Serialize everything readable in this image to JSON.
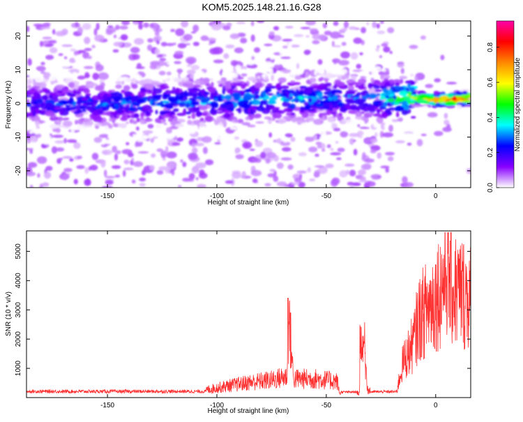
{
  "title": "KOM5.2025.148.21.16.G28",
  "chart_data": [
    {
      "type": "heatmap",
      "xlabel": "Height of straight line (km)",
      "ylabel": "Frequency (Hz)",
      "xlim": [
        -187,
        16
      ],
      "ylim": [
        -25,
        24.5
      ],
      "xticks": [
        -150,
        -100,
        -50,
        0
      ],
      "yticks": [
        -20,
        -10,
        0,
        10,
        20
      ],
      "colorbar": {
        "label": "Normalized spectral amplitude",
        "range": [
          0,
          0.95
        ],
        "ticks": [
          0.0,
          0.2,
          0.4,
          0.6,
          0.8
        ],
        "colormap": [
          "#ffffff",
          "#8800ff",
          "#0000ff",
          "#00ffff",
          "#00ff00",
          "#ffff00",
          "#ff8800",
          "#ff0000",
          "#ff00aa"
        ]
      },
      "ridge": {
        "description_points_x": [
          -187,
          -150,
          -100,
          -60,
          -30,
          -10,
          0,
          16
        ],
        "center_frequency_hz": [
          0,
          0,
          0.5,
          1.5,
          1.5,
          1.5,
          1,
          1.5
        ],
        "peak_amplitude": [
          0.25,
          0.3,
          0.35,
          0.35,
          0.3,
          0.6,
          0.85,
          0.9
        ]
      }
    },
    {
      "type": "line",
      "xlabel": "Height of straight line (km)",
      "ylabel": "SNR (10 * v/v)",
      "xlim": [
        -187,
        16
      ],
      "ylim": [
        0,
        5700
      ],
      "xticks": [
        -150,
        -100,
        -50,
        0
      ],
      "yticks": [
        1000,
        2000,
        3000,
        4000,
        5000
      ],
      "color": "#ff3030",
      "series": [
        {
          "x": [
            -187,
            -170,
            -150,
            -130,
            -115,
            -105,
            -95,
            -85,
            -75,
            -68,
            -67,
            -65,
            -55,
            -45,
            -44,
            -35,
            -33,
            -31,
            -25,
            -18,
            -15,
            -12,
            -10,
            -8,
            -5,
            0,
            3,
            5,
            8,
            12,
            16
          ],
          "y": [
            150,
            150,
            180,
            200,
            220,
            330,
            500,
            650,
            750,
            900,
            3400,
            800,
            800,
            700,
            200,
            200,
            2600,
            300,
            150,
            200,
            1500,
            2000,
            2400,
            3300,
            3700,
            4300,
            4800,
            5600,
            4600,
            4500,
            4300
          ]
        }
      ]
    }
  ]
}
